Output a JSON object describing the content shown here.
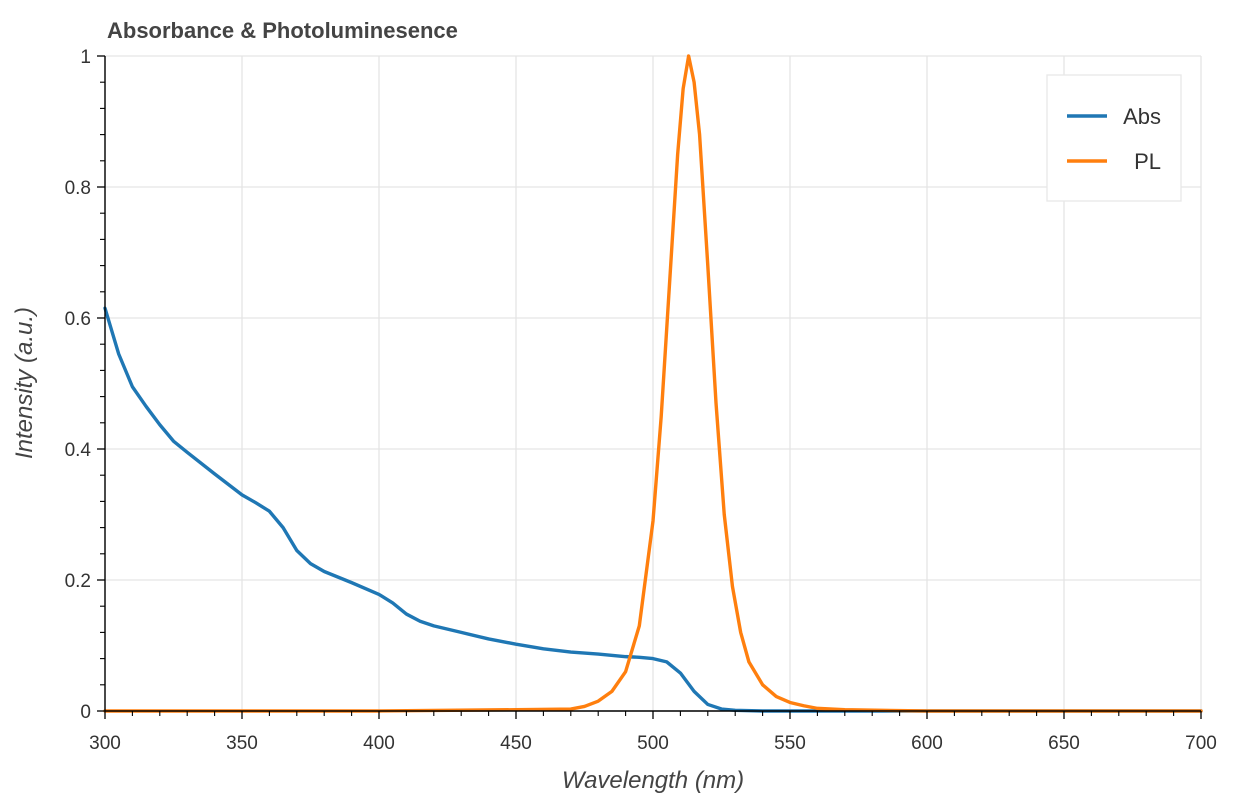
{
  "chart_data": {
    "type": "line",
    "title": "Absorbance & Photoluminesence",
    "xlabel": "Wavelength (nm)",
    "ylabel": "Intensity (a.u.)",
    "xlim": [
      300,
      700
    ],
    "ylim": [
      0,
      1
    ],
    "x_ticks": [
      "300",
      "350",
      "400",
      "450",
      "500",
      "550",
      "600",
      "650",
      "700"
    ],
    "y_ticks": [
      "0",
      "0.2",
      "0.4",
      "0.6",
      "0.8",
      "1"
    ],
    "grid": true,
    "legend_position": "top-right",
    "series": [
      {
        "name": "Abs",
        "color": "#1f77b4",
        "x": [
          300,
          305,
          310,
          315,
          320,
          325,
          330,
          340,
          350,
          355,
          360,
          365,
          370,
          375,
          380,
          390,
          400,
          405,
          410,
          415,
          420,
          430,
          440,
          450,
          460,
          470,
          480,
          490,
          495,
          500,
          505,
          510,
          515,
          520,
          525,
          530,
          540,
          550,
          600,
          650,
          700
        ],
        "y": [
          0.615,
          0.545,
          0.495,
          0.465,
          0.437,
          0.412,
          0.395,
          0.362,
          0.33,
          0.318,
          0.305,
          0.28,
          0.245,
          0.225,
          0.213,
          0.196,
          0.178,
          0.165,
          0.148,
          0.137,
          0.13,
          0.12,
          0.11,
          0.102,
          0.095,
          0.09,
          0.087,
          0.083,
          0.082,
          0.08,
          0.075,
          0.058,
          0.03,
          0.01,
          0.003,
          0.001,
          0.0,
          0.0,
          0.0,
          0.0,
          0.0
        ]
      },
      {
        "name": "PL",
        "color": "#ff7f0e",
        "x": [
          300,
          400,
          450,
          470,
          475,
          480,
          485,
          490,
          495,
          500,
          503,
          506,
          509,
          511,
          513,
          515,
          517,
          520,
          523,
          526,
          529,
          532,
          535,
          540,
          545,
          550,
          555,
          560,
          570,
          600,
          650,
          700
        ],
        "y": [
          0.0,
          0.0,
          0.002,
          0.003,
          0.007,
          0.015,
          0.03,
          0.06,
          0.13,
          0.29,
          0.45,
          0.65,
          0.85,
          0.95,
          1.0,
          0.96,
          0.88,
          0.68,
          0.47,
          0.3,
          0.19,
          0.12,
          0.075,
          0.04,
          0.022,
          0.013,
          0.008,
          0.004,
          0.002,
          0.0,
          0.0,
          0.0
        ]
      }
    ]
  }
}
